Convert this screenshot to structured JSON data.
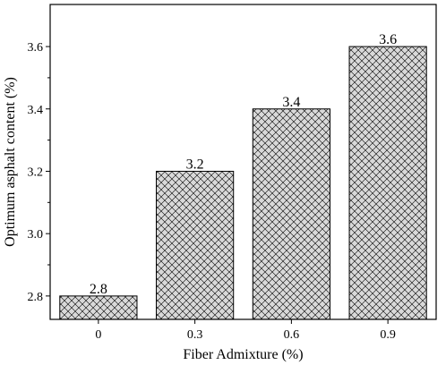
{
  "chart_data": {
    "type": "bar",
    "title": "",
    "xlabel": "Fiber Admixture (%)",
    "ylabel": "Optimum asphalt content (%)",
    "categories": [
      "0",
      "0.3",
      "0.6",
      "0.9"
    ],
    "values": [
      2.8,
      3.2,
      3.4,
      3.6
    ],
    "data_labels": [
      "2.8",
      "3.2",
      "3.4",
      "3.6"
    ],
    "ylim": [
      2.725,
      3.735
    ],
    "yticks": [
      2.8,
      3.0,
      3.2,
      3.4,
      3.6
    ],
    "ytick_labels": [
      "2.8",
      "3.0",
      "3.2",
      "3.4",
      "3.6"
    ],
    "grid": false,
    "bar_fill": "#d9d9d9",
    "bar_pattern": "crosshatch",
    "edge_color": "#000000"
  }
}
